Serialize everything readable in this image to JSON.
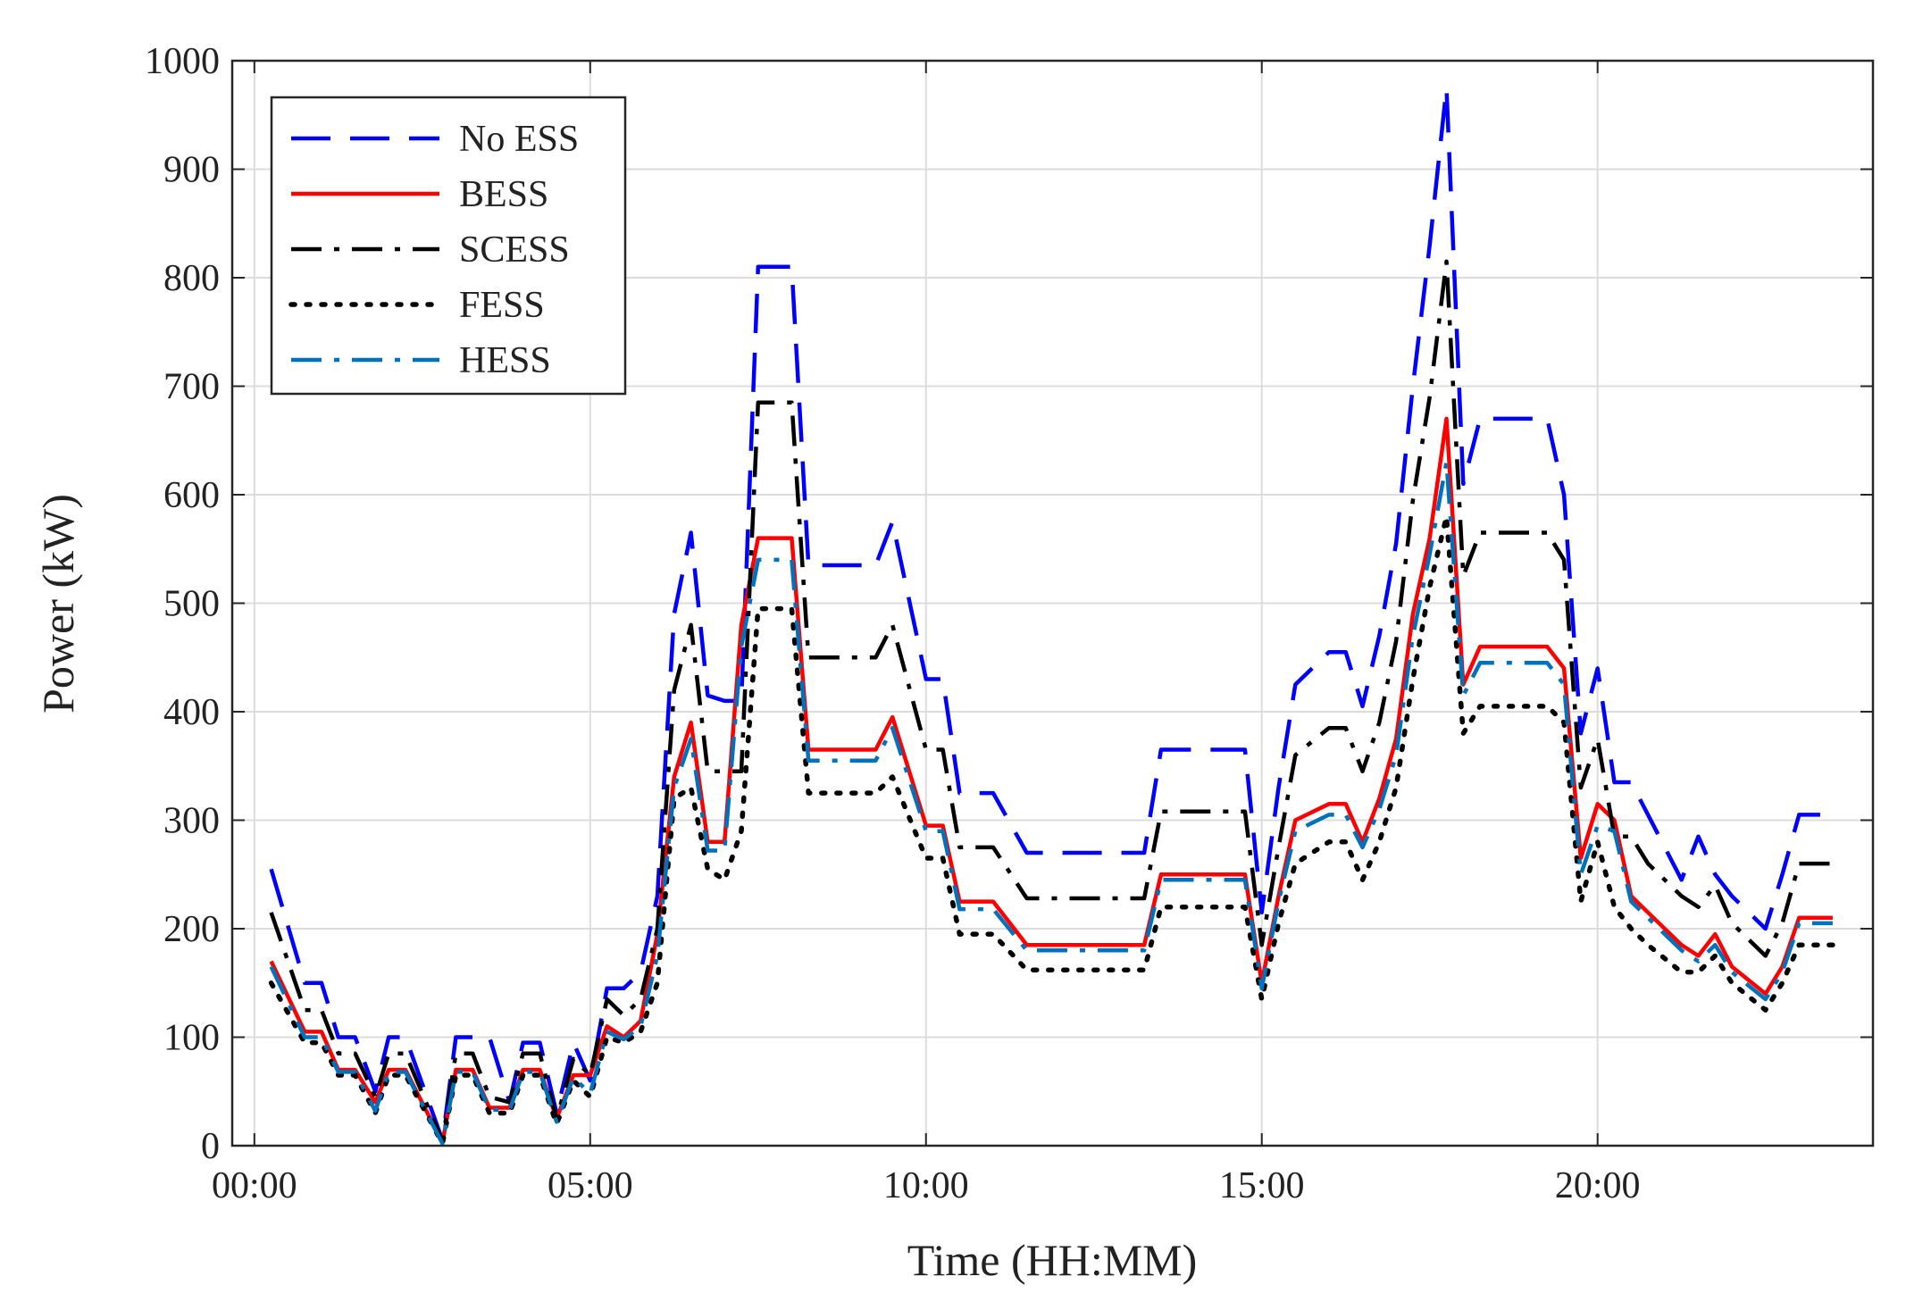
{
  "chart_data": {
    "type": "line",
    "xlabel": "Time (HH:MM)",
    "ylabel": "Power (kW)",
    "xlim": [
      -0.33,
      24.1
    ],
    "ylim": [
      0,
      1000
    ],
    "xticks": [
      {
        "value": 0,
        "label": "00:00"
      },
      {
        "value": 5,
        "label": "05:00"
      },
      {
        "value": 10,
        "label": "10:00"
      },
      {
        "value": 15,
        "label": "15:00"
      },
      {
        "value": 20,
        "label": "20:00"
      }
    ],
    "yticks": [
      0,
      100,
      200,
      300,
      400,
      500,
      600,
      700,
      800,
      900,
      1000
    ],
    "grid": true,
    "legend": "upper left",
    "x": [
      0.25,
      0.75,
      1.0,
      1.25,
      1.5,
      1.8,
      2.0,
      2.25,
      2.8,
      3.0,
      3.25,
      3.5,
      3.8,
      4.0,
      4.25,
      4.5,
      4.75,
      5.0,
      5.25,
      5.5,
      5.75,
      6.0,
      6.25,
      6.5,
      6.75,
      7.0,
      7.25,
      7.5,
      8.0,
      8.25,
      8.75,
      9.25,
      9.5,
      10.0,
      10.25,
      10.5,
      11.0,
      11.5,
      12.0,
      13.25,
      13.5,
      14.0,
      14.75,
      15.0,
      15.25,
      15.5,
      16.0,
      16.25,
      16.5,
      16.75,
      17.0,
      17.25,
      17.5,
      17.75,
      18.0,
      18.25,
      18.5,
      19.25,
      19.5,
      19.75,
      20.0,
      20.25,
      20.5,
      20.75,
      21.25,
      21.5,
      21.75,
      22.0,
      22.5,
      22.75,
      23.0,
      23.5
    ],
    "series": [
      {
        "name": "No ESS",
        "color": "#0000ff",
        "style": "dashed",
        "values": [
          255,
          150,
          150,
          100,
          100,
          50,
          100,
          100,
          5,
          100,
          100,
          100,
          40,
          95,
          95,
          30,
          95,
          60,
          145,
          145,
          160,
          230,
          490,
          565,
          415,
          410,
          410,
          810,
          810,
          535,
          535,
          535,
          575,
          430,
          430,
          325,
          325,
          270,
          270,
          270,
          365,
          365,
          365,
          215,
          330,
          425,
          455,
          455,
          405,
          470,
          555,
          700,
          830,
          975,
          610,
          670,
          670,
          670,
          600,
          380,
          440,
          335,
          335,
          305,
          245,
          285,
          250,
          230,
          200,
          250,
          305,
          305
        ]
      },
      {
        "name": "BESS",
        "color": "#ff0000",
        "style": "solid",
        "values": [
          170,
          105,
          105,
          70,
          70,
          40,
          70,
          70,
          3,
          70,
          70,
          35,
          35,
          70,
          70,
          25,
          65,
          65,
          110,
          100,
          115,
          195,
          340,
          390,
          280,
          280,
          480,
          560,
          560,
          365,
          365,
          365,
          395,
          295,
          295,
          225,
          225,
          185,
          185,
          185,
          250,
          250,
          250,
          150,
          230,
          300,
          315,
          315,
          280,
          320,
          375,
          490,
          560,
          670,
          425,
          460,
          460,
          460,
          440,
          265,
          315,
          300,
          230,
          215,
          185,
          175,
          195,
          165,
          140,
          165,
          210,
          210
        ]
      },
      {
        "name": "SCESS",
        "color": "#000000",
        "style": "dashdot",
        "values": [
          215,
          125,
          125,
          85,
          85,
          45,
          85,
          85,
          4,
          85,
          85,
          45,
          40,
          85,
          85,
          25,
          80,
          65,
          135,
          120,
          135,
          200,
          420,
          480,
          345,
          345,
          345,
          685,
          685,
          450,
          450,
          450,
          480,
          365,
          365,
          275,
          275,
          228,
          228,
          228,
          308,
          308,
          308,
          185,
          275,
          360,
          385,
          385,
          345,
          390,
          465,
          595,
          690,
          815,
          525,
          565,
          565,
          565,
          540,
          330,
          375,
          285,
          285,
          260,
          230,
          220,
          240,
          205,
          175,
          205,
          260,
          260
        ]
      },
      {
        "name": "FESS",
        "color": "#000000",
        "style": "dotted",
        "values": [
          150,
          95,
          95,
          65,
          65,
          30,
          65,
          65,
          2,
          65,
          65,
          30,
          30,
          65,
          65,
          20,
          60,
          45,
          100,
          95,
          105,
          150,
          320,
          330,
          255,
          245,
          290,
          495,
          495,
          325,
          325,
          325,
          340,
          265,
          265,
          195,
          195,
          162,
          162,
          162,
          220,
          220,
          220,
          135,
          205,
          260,
          280,
          280,
          245,
          280,
          330,
          430,
          515,
          580,
          380,
          405,
          405,
          405,
          390,
          225,
          280,
          220,
          200,
          185,
          160,
          160,
          175,
          150,
          125,
          150,
          185,
          185
        ]
      },
      {
        "name": "HESS",
        "color": "#0072bd",
        "style": "dashdot",
        "values": [
          165,
          100,
          100,
          68,
          68,
          32,
          68,
          68,
          2,
          68,
          68,
          33,
          33,
          68,
          68,
          22,
          63,
          48,
          105,
          98,
          110,
          175,
          330,
          375,
          272,
          272,
          460,
          540,
          540,
          355,
          355,
          355,
          385,
          290,
          290,
          218,
          218,
          180,
          180,
          180,
          245,
          245,
          245,
          145,
          225,
          290,
          305,
          305,
          275,
          310,
          360,
          470,
          545,
          630,
          415,
          445,
          445,
          445,
          425,
          250,
          295,
          290,
          225,
          210,
          180,
          170,
          185,
          160,
          135,
          160,
          205,
          205
        ]
      }
    ]
  }
}
